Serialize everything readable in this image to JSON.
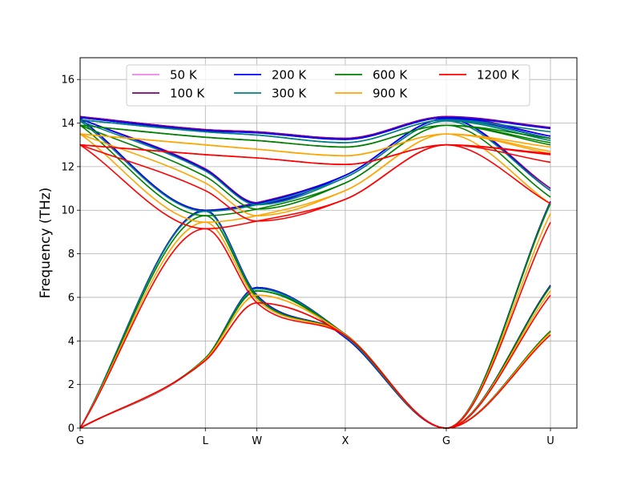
{
  "chart_data": {
    "type": "line",
    "title": "",
    "xlabel": "",
    "ylabel": "Frequency (THz)",
    "ylim": [
      0,
      17
    ],
    "yticks": [
      0,
      2,
      4,
      6,
      8,
      10,
      12,
      14,
      16
    ],
    "xticks": [
      {
        "label": "G",
        "pos": 0.0
      },
      {
        "label": "L",
        "pos": 1.19
      },
      {
        "label": "W",
        "pos": 1.68
      },
      {
        "label": "X",
        "pos": 2.52
      },
      {
        "label": "G",
        "pos": 3.48
      },
      {
        "label": "U",
        "pos": 4.47
      }
    ],
    "xlim": [
      0,
      4.47
    ],
    "grid": true,
    "legend_position": "top",
    "legend_columns": 4,
    "branch_nodes": [
      0,
      1.19,
      1.68,
      2.52,
      3.48,
      4.47
    ],
    "series": [
      {
        "name": "50 K",
        "color": "#ee82ee",
        "temperature": 50,
        "branches": [
          [
            0,
            3.2,
            6.45,
            4.15,
            0,
            4.45
          ],
          [
            0,
            3.2,
            6.45,
            4.3,
            0,
            6.55
          ],
          [
            0,
            10.0,
            6.1,
            4.3,
            0,
            10.4
          ],
          [
            14.2,
            10.0,
            10.3,
            11.6,
            14.2,
            11.0
          ],
          [
            14.2,
            11.9,
            10.3,
            11.6,
            14.2,
            13.3
          ],
          [
            14.3,
            13.7,
            13.6,
            13.3,
            14.3,
            13.4
          ],
          [
            14.3,
            13.7,
            13.6,
            13.3,
            14.3,
            13.8
          ]
        ]
      },
      {
        "name": "100 K",
        "color": "#800080",
        "temperature": 100,
        "branches": [
          [
            0,
            3.2,
            6.45,
            4.15,
            0,
            4.45
          ],
          [
            0,
            3.2,
            6.45,
            4.3,
            0,
            6.55
          ],
          [
            0,
            10.0,
            6.1,
            4.3,
            0,
            10.4
          ],
          [
            14.2,
            10.0,
            10.35,
            11.6,
            14.2,
            11.0
          ],
          [
            14.2,
            11.9,
            10.35,
            11.6,
            14.2,
            13.3
          ],
          [
            14.3,
            13.7,
            13.6,
            13.3,
            14.3,
            13.4
          ],
          [
            14.3,
            13.7,
            13.6,
            13.3,
            14.3,
            13.8
          ]
        ]
      },
      {
        "name": "200 K",
        "color": "#0000ff",
        "temperature": 200,
        "branches": [
          [
            0,
            3.2,
            6.45,
            4.15,
            0,
            4.45
          ],
          [
            0,
            3.2,
            6.45,
            4.3,
            0,
            6.55
          ],
          [
            0,
            10.0,
            6.1,
            4.3,
            0,
            10.4
          ],
          [
            14.2,
            10.0,
            10.3,
            11.6,
            14.2,
            10.9
          ],
          [
            14.2,
            11.85,
            10.3,
            11.6,
            14.2,
            13.3
          ],
          [
            14.25,
            13.65,
            13.55,
            13.25,
            14.25,
            13.4
          ],
          [
            14.25,
            13.65,
            13.55,
            13.25,
            14.25,
            13.75
          ]
        ]
      },
      {
        "name": "300 K",
        "color": "#008080",
        "temperature": 300,
        "branches": [
          [
            0,
            3.2,
            6.4,
            4.2,
            0,
            4.45
          ],
          [
            0,
            3.2,
            6.4,
            4.3,
            0,
            6.5
          ],
          [
            0,
            9.95,
            6.05,
            4.3,
            0,
            10.35
          ],
          [
            14.1,
            9.95,
            10.25,
            11.5,
            14.1,
            10.9
          ],
          [
            14.1,
            11.8,
            10.25,
            11.5,
            14.1,
            13.2
          ],
          [
            14.15,
            13.6,
            13.45,
            13.1,
            14.15,
            13.3
          ],
          [
            14.15,
            13.6,
            13.45,
            13.1,
            14.15,
            13.6
          ]
        ]
      },
      {
        "name": "600 K",
        "color": "#008000",
        "temperature": 600,
        "branches": [
          [
            0,
            3.2,
            6.3,
            4.25,
            0,
            4.45
          ],
          [
            0,
            3.2,
            6.3,
            4.3,
            0,
            6.5
          ],
          [
            0,
            9.75,
            6.0,
            4.3,
            0,
            10.3
          ],
          [
            13.9,
            9.75,
            10.05,
            11.25,
            13.9,
            10.6
          ],
          [
            13.9,
            11.55,
            10.05,
            11.25,
            13.9,
            13.0
          ],
          [
            13.9,
            13.35,
            13.2,
            12.9,
            13.9,
            13.1
          ],
          [
            13.9,
            13.35,
            13.2,
            12.9,
            13.9,
            13.3
          ]
        ]
      },
      {
        "name": "900 K",
        "color": "#ffa500",
        "temperature": 900,
        "branches": [
          [
            0,
            3.15,
            6.1,
            4.28,
            0,
            4.38
          ],
          [
            0,
            3.15,
            6.1,
            4.28,
            0,
            6.3
          ],
          [
            0,
            9.45,
            5.9,
            4.28,
            0,
            9.85
          ],
          [
            13.5,
            9.45,
            9.75,
            10.9,
            13.5,
            10.3
          ],
          [
            13.5,
            11.25,
            9.75,
            10.9,
            13.5,
            12.6
          ],
          [
            13.5,
            13.0,
            12.8,
            12.5,
            13.5,
            12.7
          ],
          [
            13.5,
            13.0,
            12.8,
            12.5,
            13.5,
            12.9
          ]
        ]
      },
      {
        "name": "1200 K",
        "color": "#ff0000",
        "temperature": 1200,
        "branches": [
          [
            0,
            3.1,
            5.75,
            4.25,
            0,
            4.28
          ],
          [
            0,
            3.1,
            5.75,
            4.25,
            0,
            6.1
          ],
          [
            0,
            9.15,
            5.75,
            4.25,
            0,
            9.45
          ],
          [
            13.0,
            9.15,
            9.5,
            10.5,
            13.0,
            10.3
          ],
          [
            13.0,
            10.9,
            9.5,
            10.5,
            13.0,
            12.2
          ],
          [
            13.0,
            12.55,
            12.4,
            12.1,
            13.0,
            12.55
          ],
          [
            13.0,
            12.55,
            12.4,
            12.1,
            13.0,
            12.6
          ]
        ]
      }
    ]
  }
}
